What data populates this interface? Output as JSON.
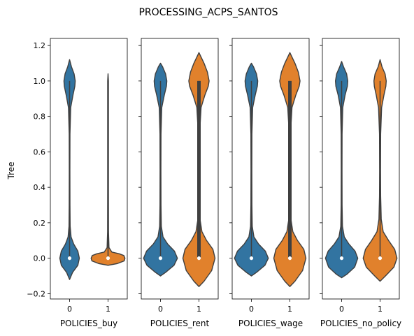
{
  "figure": {
    "title": "PROCESSING_ACPS_SANTOS",
    "ylabel": "Tree"
  },
  "chart_data": {
    "type": "violin",
    "title": "PROCESSING_ACPS_SANTOS",
    "ylabel": "Tree",
    "ylim": [
      -0.23,
      1.24
    ],
    "yticks": [
      -0.2,
      0.0,
      0.2,
      0.4,
      0.6,
      0.8,
      1.0,
      1.2
    ],
    "ytick_labels": [
      "−0.2",
      "0.0",
      "0.2",
      "0.4",
      "0.6",
      "0.8",
      "1.0",
      "1.2"
    ],
    "shared_y": true,
    "grid": false,
    "colors": {
      "0": "#3274a1",
      "1": "#e1812c",
      "inner": "#3f3f3f",
      "edge": "#3f3f3f"
    },
    "panels": [
      {
        "xlabel": "POLICIES_buy",
        "categories": [
          "0",
          "1"
        ],
        "violins": [
          {
            "category": "0",
            "median": 0.0,
            "q1": 0.0,
            "q3": 0.0,
            "whisker_low": 0.0,
            "whisker_high": 1.0,
            "kde_min": -0.12,
            "kde_max": 1.12,
            "profile": [
              [
                -0.12,
                0
              ],
              [
                -0.08,
                0.08
              ],
              [
                -0.04,
                0.22
              ],
              [
                0.0,
                0.26
              ],
              [
                0.04,
                0.22
              ],
              [
                0.08,
                0.11
              ],
              [
                0.12,
                0.04
              ],
              [
                0.18,
                0.015
              ],
              [
                0.3,
                0.01
              ],
              [
                0.5,
                0.008
              ],
              [
                0.7,
                0.01
              ],
              [
                0.85,
                0.03
              ],
              [
                0.92,
                0.09
              ],
              [
                0.97,
                0.14
              ],
              [
                1.0,
                0.15
              ],
              [
                1.04,
                0.12
              ],
              [
                1.08,
                0.05
              ],
              [
                1.12,
                0
              ]
            ]
          },
          {
            "category": "1",
            "median": 0.0,
            "q1": 0.0,
            "q3": 0.0,
            "whisker_low": 0.0,
            "whisker_high": 1.0,
            "kde_min": -0.04,
            "kde_max": 1.04,
            "profile": [
              [
                -0.04,
                0
              ],
              [
                -0.03,
                0.25
              ],
              [
                -0.015,
                0.43
              ],
              [
                0.0,
                0.45
              ],
              [
                0.015,
                0.42
              ],
              [
                0.025,
                0.3
              ],
              [
                0.035,
                0.1
              ],
              [
                0.06,
                0.025
              ],
              [
                0.15,
                0.012
              ],
              [
                0.4,
                0.01
              ],
              [
                0.8,
                0.01
              ],
              [
                1.0,
                0.01
              ],
              [
                1.04,
                0
              ]
            ]
          }
        ]
      },
      {
        "xlabel": "POLICIES_rent",
        "categories": [
          "0",
          "1"
        ],
        "violins": [
          {
            "category": "0",
            "median": 0.0,
            "q1": 0.0,
            "q3": 0.0,
            "whisker_low": 0.0,
            "whisker_high": 1.0,
            "kde_min": -0.1,
            "kde_max": 1.1,
            "profile": [
              [
                -0.1,
                0
              ],
              [
                -0.08,
                0.12
              ],
              [
                -0.04,
                0.32
              ],
              [
                0.0,
                0.4
              ],
              [
                0.04,
                0.33
              ],
              [
                0.08,
                0.17
              ],
              [
                0.12,
                0.06
              ],
              [
                0.18,
                0.02
              ],
              [
                0.3,
                0.012
              ],
              [
                0.5,
                0.01
              ],
              [
                0.7,
                0.012
              ],
              [
                0.85,
                0.03
              ],
              [
                0.92,
                0.09
              ],
              [
                0.97,
                0.14
              ],
              [
                1.0,
                0.15
              ],
              [
                1.04,
                0.12
              ],
              [
                1.08,
                0.05
              ],
              [
                1.1,
                0
              ]
            ]
          },
          {
            "category": "1",
            "median": 0.0,
            "q1": 0.0,
            "q3": 1.0,
            "whisker_low": 0.0,
            "whisker_high": 1.0,
            "kde_min": -0.16,
            "kde_max": 1.16,
            "profile": [
              [
                -0.16,
                0
              ],
              [
                -0.13,
                0.12
              ],
              [
                -0.07,
                0.3
              ],
              [
                0.0,
                0.38
              ],
              [
                0.05,
                0.33
              ],
              [
                0.1,
                0.18
              ],
              [
                0.15,
                0.07
              ],
              [
                0.22,
                0.025
              ],
              [
                0.35,
                0.015
              ],
              [
                0.5,
                0.012
              ],
              [
                0.7,
                0.015
              ],
              [
                0.85,
                0.05
              ],
              [
                0.92,
                0.14
              ],
              [
                0.97,
                0.22
              ],
              [
                1.0,
                0.24
              ],
              [
                1.05,
                0.2
              ],
              [
                1.1,
                0.12
              ],
              [
                1.16,
                0
              ]
            ]
          }
        ]
      },
      {
        "xlabel": "POLICIES_wage",
        "categories": [
          "0",
          "1"
        ],
        "violins": [
          {
            "category": "0",
            "median": 0.0,
            "q1": 0.0,
            "q3": 0.0,
            "whisker_low": 0.0,
            "whisker_high": 1.0,
            "kde_min": -0.1,
            "kde_max": 1.1,
            "profile": [
              [
                -0.1,
                0
              ],
              [
                -0.08,
                0.12
              ],
              [
                -0.04,
                0.32
              ],
              [
                0.0,
                0.4
              ],
              [
                0.04,
                0.33
              ],
              [
                0.08,
                0.17
              ],
              [
                0.12,
                0.06
              ],
              [
                0.18,
                0.02
              ],
              [
                0.3,
                0.012
              ],
              [
                0.5,
                0.01
              ],
              [
                0.7,
                0.012
              ],
              [
                0.85,
                0.03
              ],
              [
                0.92,
                0.09
              ],
              [
                0.97,
                0.14
              ],
              [
                1.0,
                0.15
              ],
              [
                1.04,
                0.12
              ],
              [
                1.08,
                0.05
              ],
              [
                1.1,
                0
              ]
            ]
          },
          {
            "category": "1",
            "median": 0.0,
            "q1": 0.0,
            "q3": 1.0,
            "whisker_low": 0.0,
            "whisker_high": 1.0,
            "kde_min": -0.16,
            "kde_max": 1.16,
            "profile": [
              [
                -0.16,
                0
              ],
              [
                -0.13,
                0.12
              ],
              [
                -0.07,
                0.3
              ],
              [
                0.0,
                0.38
              ],
              [
                0.05,
                0.33
              ],
              [
                0.1,
                0.18
              ],
              [
                0.15,
                0.07
              ],
              [
                0.22,
                0.025
              ],
              [
                0.35,
                0.015
              ],
              [
                0.5,
                0.012
              ],
              [
                0.7,
                0.015
              ],
              [
                0.85,
                0.05
              ],
              [
                0.92,
                0.14
              ],
              [
                0.97,
                0.22
              ],
              [
                1.0,
                0.24
              ],
              [
                1.05,
                0.2
              ],
              [
                1.1,
                0.12
              ],
              [
                1.16,
                0
              ]
            ]
          }
        ]
      },
      {
        "xlabel": "POLICIES_no_policy",
        "categories": [
          "0",
          "1"
        ],
        "violins": [
          {
            "category": "0",
            "median": 0.0,
            "q1": 0.0,
            "q3": 0.0,
            "whisker_low": 0.0,
            "whisker_high": 1.0,
            "kde_min": -0.11,
            "kde_max": 1.11,
            "profile": [
              [
                -0.11,
                0
              ],
              [
                -0.09,
                0.14
              ],
              [
                -0.05,
                0.34
              ],
              [
                0.0,
                0.42
              ],
              [
                0.04,
                0.35
              ],
              [
                0.08,
                0.19
              ],
              [
                0.12,
                0.07
              ],
              [
                0.18,
                0.022
              ],
              [
                0.3,
                0.012
              ],
              [
                0.5,
                0.01
              ],
              [
                0.7,
                0.012
              ],
              [
                0.85,
                0.03
              ],
              [
                0.92,
                0.09
              ],
              [
                0.97,
                0.15
              ],
              [
                1.0,
                0.16
              ],
              [
                1.04,
                0.13
              ],
              [
                1.08,
                0.05
              ],
              [
                1.11,
                0
              ]
            ]
          },
          {
            "category": "1",
            "median": 0.0,
            "q1": 0.0,
            "q3": 0.0,
            "whisker_low": 0.0,
            "whisker_high": 1.0,
            "kde_min": -0.13,
            "kde_max": 1.12,
            "profile": [
              [
                -0.13,
                0
              ],
              [
                -0.1,
                0.14
              ],
              [
                -0.05,
                0.36
              ],
              [
                0.0,
                0.44
              ],
              [
                0.05,
                0.38
              ],
              [
                0.1,
                0.22
              ],
              [
                0.15,
                0.08
              ],
              [
                0.22,
                0.03
              ],
              [
                0.35,
                0.015
              ],
              [
                0.5,
                0.012
              ],
              [
                0.7,
                0.015
              ],
              [
                0.85,
                0.04
              ],
              [
                0.92,
                0.1
              ],
              [
                0.97,
                0.15
              ],
              [
                1.0,
                0.16
              ],
              [
                1.04,
                0.13
              ],
              [
                1.08,
                0.05
              ],
              [
                1.12,
                0
              ]
            ]
          }
        ]
      }
    ]
  }
}
